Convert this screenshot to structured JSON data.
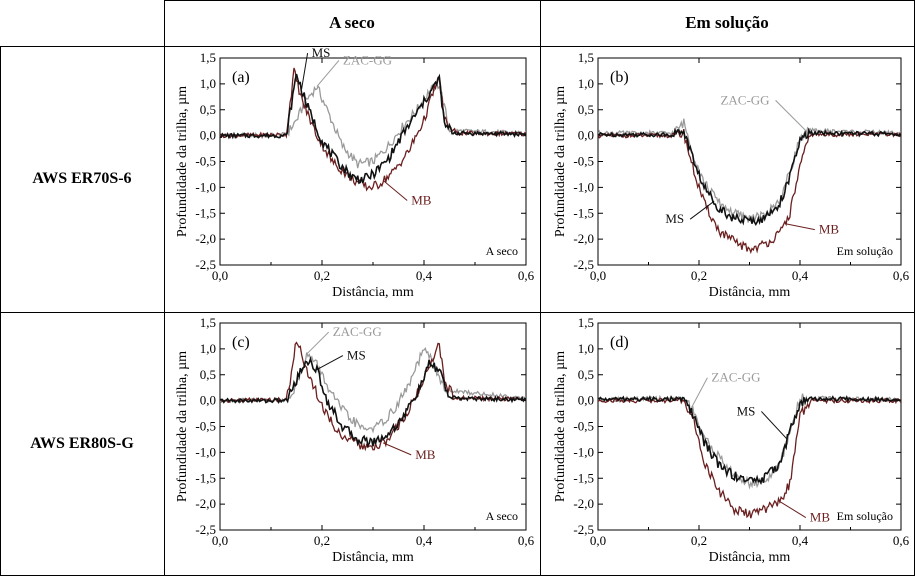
{
  "table": {
    "col_headers": [
      "A seco",
      "Em solução"
    ],
    "row_headers": [
      "AWS ER70S-6",
      "AWS ER80S-G"
    ]
  },
  "colors": {
    "MS": "#111111",
    "ZAC-GG": "#9a9a9a",
    "MB": "#6b1f1f"
  },
  "chart_data": [
    {
      "type": "line",
      "panel_label": "(a)",
      "condition_note": "A seco",
      "xlabel": "Distância, mm",
      "ylabel": "Profundidade da trilha, µm",
      "xlim": [
        0,
        0.6
      ],
      "ylim": [
        -2.5,
        1.5
      ],
      "x_ticks": [
        "0,0",
        "0,2",
        "0,4",
        "0,6"
      ],
      "y_ticks": [
        "1,5",
        "1,0",
        "0,5",
        "0,0",
        "-0,5",
        "-1,0",
        "-1,5",
        "-2,0",
        "-2,5"
      ],
      "series": [
        {
          "name": "MS",
          "x": [
            0,
            0.13,
            0.14,
            0.15,
            0.17,
            0.2,
            0.23,
            0.26,
            0.28,
            0.3,
            0.33,
            0.36,
            0.39,
            0.41,
            0.43,
            0.44,
            0.46,
            0.6
          ],
          "y": [
            0,
            0,
            0.6,
            1.2,
            0.6,
            -0.1,
            -0.5,
            -0.8,
            -0.85,
            -0.75,
            -0.45,
            0.05,
            0.5,
            0.8,
            1.1,
            0.2,
            0.05,
            0.03
          ]
        },
        {
          "name": "ZAC-GG",
          "x": [
            0,
            0.13,
            0.15,
            0.17,
            0.19,
            0.21,
            0.24,
            0.27,
            0.3,
            0.33,
            0.36,
            0.39,
            0.41,
            0.43,
            0.45,
            0.6
          ],
          "y": [
            0,
            0.02,
            0.3,
            0.7,
            0.95,
            0.5,
            -0.2,
            -0.55,
            -0.5,
            -0.2,
            0.2,
            0.55,
            0.85,
            1.0,
            0.1,
            0.05
          ]
        },
        {
          "name": "MB",
          "x": [
            0,
            0.13,
            0.145,
            0.16,
            0.19,
            0.22,
            0.26,
            0.29,
            0.31,
            0.34,
            0.37,
            0.4,
            0.42,
            0.43,
            0.44,
            0.46,
            0.6
          ],
          "y": [
            0,
            0.02,
            1.25,
            0.7,
            0.0,
            -0.5,
            -0.85,
            -1.0,
            -0.95,
            -0.7,
            -0.3,
            0.3,
            0.9,
            1.1,
            0.3,
            0.05,
            0.03
          ]
        }
      ],
      "annotations": [
        {
          "text": "MS",
          "series": "MS",
          "at_x": 0.16
        },
        {
          "text": "ZAC-GG",
          "series": "ZAC-GG",
          "at_x": 0.19
        },
        {
          "text": "MB",
          "series": "MB",
          "at_x": 0.32
        }
      ]
    },
    {
      "type": "line",
      "panel_label": "(b)",
      "condition_note": "Em solução",
      "xlabel": "Distância, mm",
      "ylabel": "Profundidade da trilha, µm",
      "xlim": [
        0,
        0.6
      ],
      "ylim": [
        -2.5,
        1.5
      ],
      "x_ticks": [
        "0,0",
        "0,2",
        "0,4",
        "0,6"
      ],
      "y_ticks": [
        "1,5",
        "1,0",
        "0,5",
        "0,0",
        "-0,5",
        "-1,0",
        "-1,5",
        "-2,0",
        "-2,5"
      ],
      "series": [
        {
          "name": "MS",
          "x": [
            0,
            0.15,
            0.17,
            0.19,
            0.21,
            0.24,
            0.27,
            0.3,
            0.33,
            0.36,
            0.38,
            0.4,
            0.42,
            0.6
          ],
          "y": [
            0.02,
            0.02,
            0.1,
            -0.5,
            -1.0,
            -1.4,
            -1.6,
            -1.65,
            -1.6,
            -1.3,
            -0.8,
            -0.1,
            0.05,
            0.03
          ]
        },
        {
          "name": "ZAC-GG",
          "x": [
            0,
            0.15,
            0.17,
            0.19,
            0.21,
            0.24,
            0.27,
            0.3,
            0.33,
            0.36,
            0.38,
            0.4,
            0.42,
            0.6
          ],
          "y": [
            0.05,
            0.05,
            0.25,
            -0.4,
            -0.9,
            -1.3,
            -1.5,
            -1.6,
            -1.55,
            -1.25,
            -0.7,
            -0.05,
            0.1,
            0.05
          ]
        },
        {
          "name": "MB",
          "x": [
            0,
            0.15,
            0.17,
            0.19,
            0.21,
            0.24,
            0.27,
            0.3,
            0.33,
            0.36,
            0.38,
            0.4,
            0.42,
            0.6
          ],
          "y": [
            0,
            0,
            0.05,
            -0.7,
            -1.3,
            -1.85,
            -2.05,
            -2.2,
            -2.1,
            -1.9,
            -1.5,
            -0.6,
            0.02,
            0.02
          ]
        }
      ],
      "annotations": [
        {
          "text": "ZAC-GG",
          "series": "ZAC-GG",
          "at_x": 0.415
        },
        {
          "text": "MS",
          "series": "MS",
          "at_x": 0.23
        },
        {
          "text": "MB",
          "series": "MB",
          "at_x": 0.37
        }
      ]
    },
    {
      "type": "line",
      "panel_label": "(c)",
      "condition_note": "A seco",
      "xlabel": "Distância, mm",
      "ylabel": "Profundidade da trilha, µm",
      "xlim": [
        0,
        0.6
      ],
      "ylim": [
        -2.5,
        1.5
      ],
      "x_ticks": [
        "0,0",
        "0,2",
        "0,4",
        "0,6"
      ],
      "y_ticks": [
        "1,5",
        "1,0",
        "0,5",
        "0,0",
        "-0,5",
        "-1,0",
        "-1,5",
        "-2,0",
        "-2,5"
      ],
      "series": [
        {
          "name": "MS",
          "x": [
            0,
            0.13,
            0.15,
            0.17,
            0.19,
            0.21,
            0.24,
            0.27,
            0.3,
            0.33,
            0.36,
            0.39,
            0.41,
            0.43,
            0.45,
            0.6
          ],
          "y": [
            0,
            0,
            0.4,
            0.8,
            0.6,
            0.0,
            -0.5,
            -0.75,
            -0.8,
            -0.65,
            -0.3,
            0.2,
            0.7,
            0.6,
            0.05,
            0.02
          ]
        },
        {
          "name": "ZAC-GG",
          "x": [
            0,
            0.13,
            0.15,
            0.17,
            0.19,
            0.22,
            0.25,
            0.28,
            0.31,
            0.34,
            0.37,
            0.4,
            0.42,
            0.44,
            0.6
          ],
          "y": [
            0,
            0.02,
            0.3,
            0.9,
            0.7,
            0.1,
            -0.3,
            -0.55,
            -0.5,
            -0.2,
            0.3,
            1.0,
            0.7,
            0.2,
            0.05
          ]
        },
        {
          "name": "MB",
          "x": [
            0,
            0.13,
            0.14,
            0.15,
            0.17,
            0.2,
            0.23,
            0.27,
            0.3,
            0.33,
            0.36,
            0.39,
            0.42,
            0.43,
            0.44,
            0.46,
            0.6
          ],
          "y": [
            0,
            0.02,
            0.5,
            1.2,
            0.6,
            -0.1,
            -0.6,
            -0.85,
            -0.95,
            -0.75,
            -0.35,
            0.2,
            0.9,
            1.1,
            0.4,
            0.05,
            0.03
          ]
        }
      ],
      "annotations": [
        {
          "text": "ZAC-GG",
          "series": "ZAC-GG",
          "at_x": 0.17
        },
        {
          "text": "MS",
          "series": "MS",
          "at_x": 0.19
        },
        {
          "text": "MB",
          "series": "MB",
          "at_x": 0.32
        }
      ]
    },
    {
      "type": "line",
      "panel_label": "(d)",
      "condition_note": "Em solução",
      "xlabel": "Distância, mm",
      "ylabel": "Profundidade da trilha, µm",
      "xlim": [
        0,
        0.6
      ],
      "ylim": [
        -2.5,
        1.5
      ],
      "x_ticks": [
        "0,0",
        "0,2",
        "0,4",
        "0,6"
      ],
      "y_ticks": [
        "1,5",
        "1,0",
        "0,5",
        "0,0",
        "-0,5",
        "-1,0",
        "-1,5",
        "-2,0",
        "-2,5"
      ],
      "series": [
        {
          "name": "MS",
          "x": [
            0,
            0.17,
            0.19,
            0.21,
            0.24,
            0.27,
            0.3,
            0.33,
            0.36,
            0.38,
            0.4,
            0.42,
            0.6
          ],
          "y": [
            0.03,
            0.03,
            -0.3,
            -0.8,
            -1.25,
            -1.45,
            -1.55,
            -1.5,
            -1.2,
            -0.6,
            -0.05,
            0.03,
            0.03
          ]
        },
        {
          "name": "ZAC-GG",
          "x": [
            0,
            0.17,
            0.19,
            0.21,
            0.24,
            0.27,
            0.3,
            0.33,
            0.36,
            0.38,
            0.4,
            0.42,
            0.6
          ],
          "y": [
            0.02,
            0.05,
            -0.2,
            -0.7,
            -1.1,
            -1.45,
            -1.6,
            -1.55,
            -1.25,
            -0.6,
            0.05,
            0.05,
            0.02
          ]
        },
        {
          "name": "MB",
          "x": [
            0,
            0.17,
            0.19,
            0.21,
            0.24,
            0.27,
            0.3,
            0.33,
            0.36,
            0.38,
            0.4,
            0.42,
            0.6
          ],
          "y": [
            0,
            0,
            -0.4,
            -1.2,
            -1.75,
            -2.1,
            -2.2,
            -2.1,
            -1.95,
            -1.6,
            -0.3,
            0.0,
            0.0
          ]
        }
      ],
      "annotations": [
        {
          "text": "ZAC-GG",
          "series": "ZAC-GG",
          "at_x": 0.185
        },
        {
          "text": "MS",
          "series": "MS",
          "at_x": 0.375
        },
        {
          "text": "MB",
          "series": "MB",
          "at_x": 0.36
        }
      ]
    }
  ]
}
